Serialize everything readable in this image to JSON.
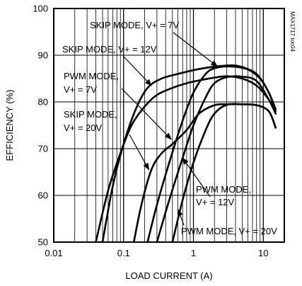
{
  "chart_data": {
    "type": "line",
    "title": "",
    "xlabel": "LOAD CURRENT (A)",
    "ylabel": "EFFICIENCY (%)",
    "xscale": "log",
    "xlim": [
      0.01,
      20
    ],
    "ylim": [
      50,
      100
    ],
    "xticks": [
      0.01,
      0.1,
      1,
      10
    ],
    "xtick_labels": [
      "0.01",
      "0.1",
      "1",
      "10"
    ],
    "yticks": [
      50,
      60,
      70,
      80,
      90,
      100
    ],
    "ytick_labels": [
      "50",
      "60",
      "70",
      "80",
      "90",
      "100"
    ],
    "grid": true,
    "series": [
      {
        "name": "SKIP MODE, V+ = 7V",
        "x": [
          0.05,
          0.07,
          0.1,
          0.15,
          0.22,
          0.35,
          0.6,
          1.0,
          1.5,
          2.5,
          4.0,
          6.0,
          9.0,
          12.0,
          15.0
        ],
        "y": [
          50,
          62,
          71,
          78.5,
          83,
          85,
          86,
          86.8,
          87.3,
          87.7,
          87.8,
          87,
          85,
          82,
          78.5
        ]
      },
      {
        "name": "SKIP MODE, V+ = 12V",
        "x": [
          0.04,
          0.06,
          0.09,
          0.13,
          0.2,
          0.3,
          0.5,
          0.8,
          1.2,
          2.0,
          3.0,
          5.0,
          8.0,
          12.0,
          15.0
        ],
        "y": [
          50,
          61,
          69,
          75,
          79,
          81.5,
          83,
          84,
          84.6,
          85.2,
          85.5,
          85,
          83.5,
          80.5,
          78
        ]
      },
      {
        "name": "PWM MODE, V+ = 7V",
        "x": [
          0.22,
          0.3,
          0.45,
          0.7,
          1.0,
          1.5,
          2.0,
          3.0,
          5.0,
          8.0,
          12.0,
          15.0
        ],
        "y": [
          50,
          58,
          67,
          76,
          82,
          86,
          87.2,
          87.6,
          87.3,
          86,
          82,
          78
        ]
      },
      {
        "name": "SKIP MODE, V+ = 20V",
        "x": [
          0.14,
          0.18,
          0.25,
          0.35,
          0.5,
          0.8,
          1.2,
          2.0,
          3.0,
          5.0,
          8.0,
          12.0,
          15.0
        ],
        "y": [
          50,
          58,
          65.5,
          69,
          71,
          74,
          77.5,
          79.3,
          79.5,
          79.5,
          79.3,
          78,
          74.5
        ]
      },
      {
        "name": "PWM MODE, V+ = 12V",
        "x": [
          0.3,
          0.45,
          0.7,
          1.0,
          1.5,
          2.0,
          3.0,
          5.0,
          8.0,
          12.0,
          15.0
        ],
        "y": [
          50,
          59,
          68,
          75,
          81,
          84,
          85.3,
          85.4,
          84.5,
          80.5,
          77.5
        ]
      },
      {
        "name": "PWM MODE, V+ = 20V",
        "x": [
          0.5,
          0.7,
          1.0,
          1.5,
          2.0,
          3.0,
          5.0,
          8.0,
          12.0,
          15.0
        ],
        "y": [
          50,
          59,
          67,
          74,
          77.5,
          79.4,
          79.5,
          79.3,
          78,
          74.5
        ]
      }
    ],
    "annotations": [
      {
        "text": "SKIP MODE, V+ = 7V",
        "target": {
          "x": 2.2,
          "y": 87.6
        }
      },
      {
        "text": "SKIP MODE, V+ = 12V",
        "target": {
          "x": 0.25,
          "y": 83.5
        }
      },
      {
        "text": "PWM MODE,",
        "target": null
      },
      {
        "text": "V+ = 7V",
        "target": {
          "x": 0.48,
          "y": 72
        }
      },
      {
        "text": "SKIP MODE,",
        "target": null
      },
      {
        "text": "V+ = 20V",
        "target": {
          "x": 0.23,
          "y": 65.5
        }
      },
      {
        "text": "PWM MODE,",
        "target": null
      },
      {
        "text": "V+ = 12V",
        "target": {
          "x": 0.7,
          "y": 68
        }
      },
      {
        "text": "PWM MODE, V+ = 20V",
        "target": {
          "x": 0.6,
          "y": 57
        }
      }
    ],
    "watermark": "MAX1717 toc04"
  }
}
